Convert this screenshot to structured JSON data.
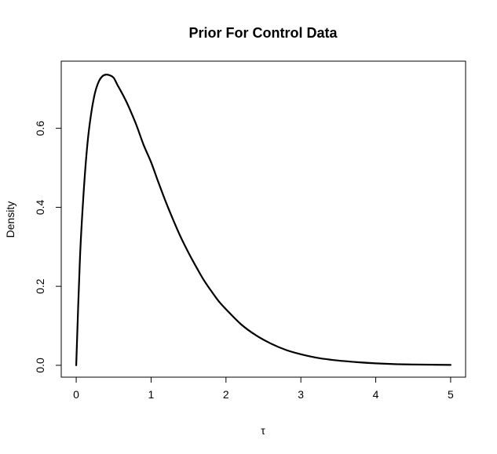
{
  "chart_data": {
    "type": "line",
    "title": "Prior For Control Data",
    "xlabel": "τ",
    "ylabel": "Density",
    "xlim": [
      -0.2,
      5.2
    ],
    "ylim": [
      -0.03,
      0.77
    ],
    "x_ticks": [
      0,
      1,
      2,
      3,
      4,
      5
    ],
    "x_tick_labels": [
      "0",
      "1",
      "2",
      "3",
      "4",
      "5"
    ],
    "y_ticks": [
      0.0,
      0.2,
      0.4,
      0.6
    ],
    "y_tick_labels": [
      "0.0",
      "0.2",
      "0.4",
      "0.6"
    ],
    "grid": false,
    "series": [
      {
        "color": "#000000",
        "x": [
          0,
          0.05,
          0.1,
          0.15,
          0.2,
          0.25,
          0.3,
          0.35,
          0.4,
          0.45,
          0.5,
          0.55,
          0.6,
          0.65,
          0.7,
          0.8,
          0.9,
          1.0,
          1.1,
          1.2,
          1.3,
          1.4,
          1.5,
          1.6,
          1.7,
          1.8,
          1.9,
          2.0,
          2.2,
          2.4,
          2.6,
          2.8,
          3.0,
          3.25,
          3.5,
          3.75,
          4.0,
          4.25,
          4.5,
          4.75,
          5.0
        ],
        "y": [
          0,
          0.271,
          0.44,
          0.561,
          0.638,
          0.689,
          0.718,
          0.732,
          0.736,
          0.734,
          0.728,
          0.71,
          0.693,
          0.675,
          0.655,
          0.61,
          0.558,
          0.514,
          0.462,
          0.412,
          0.366,
          0.323,
          0.285,
          0.25,
          0.217,
          0.189,
          0.163,
          0.142,
          0.104,
          0.076,
          0.055,
          0.039,
          0.028,
          0.018,
          0.012,
          0.008,
          0.005,
          0.003,
          0.002,
          0.0015,
          0.001
        ]
      }
    ]
  }
}
